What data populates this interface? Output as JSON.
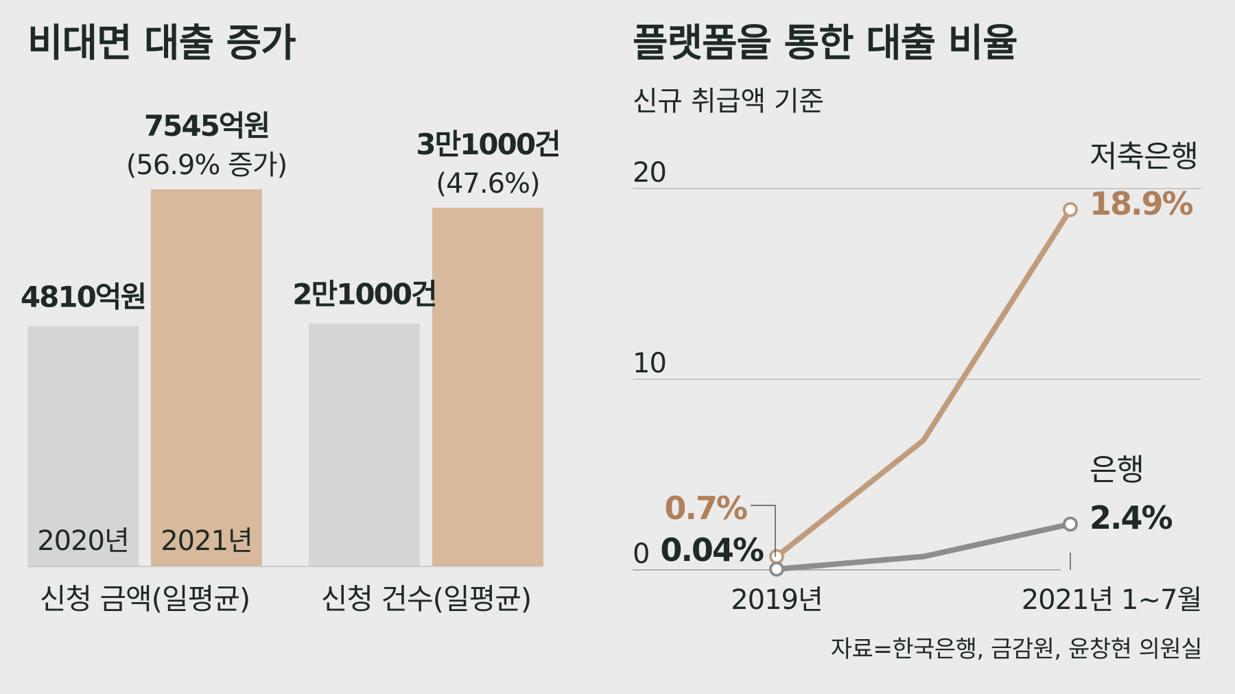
{
  "colors": {
    "bar_2020": "#d5d5d5",
    "bar_2021": "#d8b99b",
    "savings_bank": "#c19c7c",
    "savings_bank_label": "#b0805a",
    "bank": "#8d8d8d",
    "text": "#1e2a24",
    "grid": "#bdbdbd"
  },
  "left": {
    "title": "비대면 대출 증가"
  },
  "right": {
    "title": "플랫폼을 통한 대출 비율",
    "subtitle": "신규 취급액 기준"
  },
  "source": "자료=한국은행, 금감원, 윤창현 의원실",
  "chart_data": [
    {
      "type": "bar",
      "title": "비대면 대출 증가",
      "categories": [
        "신청 금액(일평균)",
        "신청 건수(일평균)"
      ],
      "series": [
        {
          "name": "2020년",
          "values": [
            4810,
            21000
          ],
          "labels": [
            "4810억원",
            "2만1000건"
          ]
        },
        {
          "name": "2021년",
          "values": [
            7545,
            31000
          ],
          "labels": [
            "7545억원",
            "3만1000건"
          ]
        }
      ],
      "growth_labels": [
        "(56.9% 증가)",
        "(47.6%)"
      ]
    },
    {
      "type": "line",
      "title": "플랫폼을 통한 대출 비율",
      "subtitle": "신규 취급액 기준",
      "x_ticks": [
        "2019년",
        "2021년 1~7월"
      ],
      "y_ticks": [
        0,
        10,
        20
      ],
      "ylim": [
        0,
        20
      ],
      "x": [
        0,
        1,
        2
      ],
      "series": [
        {
          "name": "저축은행",
          "values": [
            0.7,
            6.8,
            18.9
          ],
          "start_label": "0.7%",
          "end_label": "18.9%"
        },
        {
          "name": "은행",
          "values": [
            0.04,
            0.7,
            2.4
          ],
          "start_label": "0.04%",
          "end_label": "2.4%"
        }
      ]
    }
  ]
}
